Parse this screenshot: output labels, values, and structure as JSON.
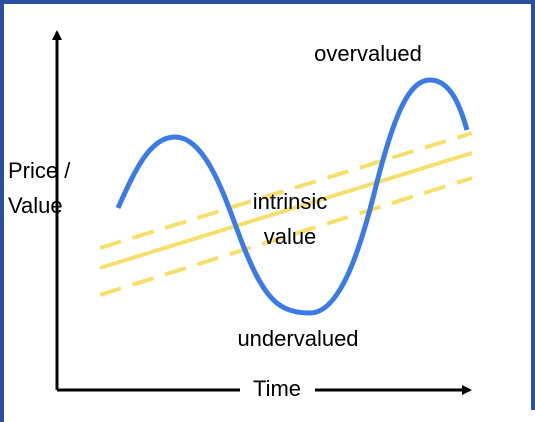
{
  "labels": {
    "y_axis": [
      "Price /",
      "Value"
    ],
    "x_axis": "Time",
    "overvalued": "overvalued",
    "intrinsic_value": [
      "intrinsic",
      "value"
    ],
    "undervalued": "undervalued"
  }
}
